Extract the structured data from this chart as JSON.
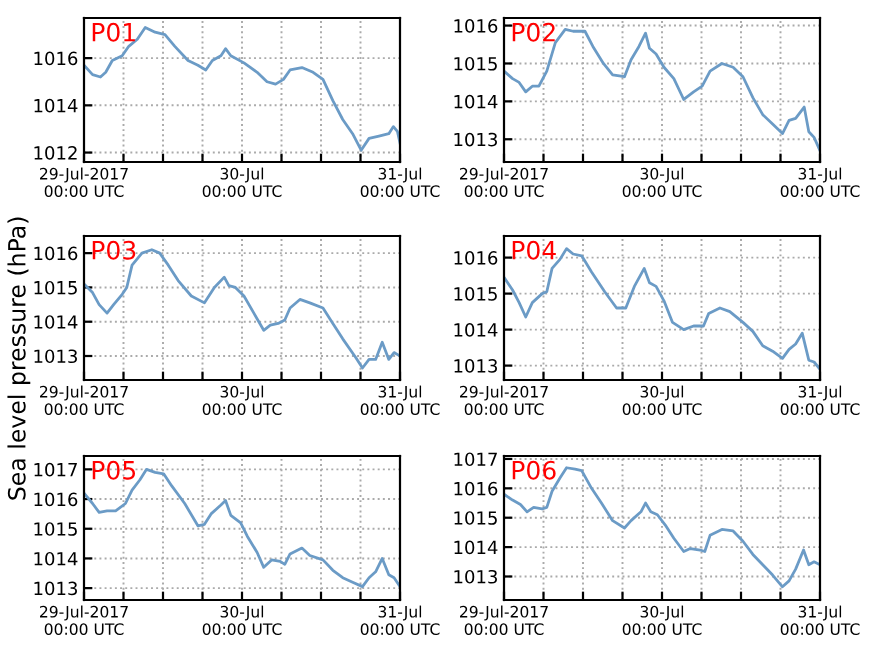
{
  "chart_data": [
    {
      "type": "line",
      "title": "P01",
      "xlim": [
        "2017-07-29T00:00",
        "2017-07-31T00:00"
      ],
      "ylim": [
        1011.6,
        1017.7
      ],
      "yticks": [
        1012,
        1014,
        1016
      ],
      "xticks": [
        {
          "value": "2017-07-29T00:00",
          "label": "29-Jul-2017\n00:00 UTC"
        },
        {
          "value": "2017-07-29T06:00",
          "label": null
        },
        {
          "value": "2017-07-29T12:00",
          "label": null
        },
        {
          "value": "2017-07-29T18:00",
          "label": null
        },
        {
          "value": "2017-07-30T00:00",
          "label": "30-Jul\n00:00 UTC"
        },
        {
          "value": "2017-07-30T06:00",
          "label": null
        },
        {
          "value": "2017-07-30T12:00",
          "label": null
        },
        {
          "value": "2017-07-30T18:00",
          "label": null
        },
        {
          "value": "2017-07-31T00:00",
          "label": "31-Jul\n00:00 UTC"
        }
      ],
      "grid": true,
      "series": [
        {
          "color": "#6b9bc6",
          "x": [
            "2017-07-29T00:00",
            "2017-07-29T01:18",
            "2017-07-29T02:30",
            "2017-07-29T03:18",
            "2017-07-29T04:18",
            "2017-07-29T05:48",
            "2017-07-29T06:48",
            "2017-07-29T08:06",
            "2017-07-29T09:18",
            "2017-07-29T10:48",
            "2017-07-29T12:18",
            "2017-07-29T13:48",
            "2017-07-29T15:48",
            "2017-07-29T17:18",
            "2017-07-29T18:30",
            "2017-07-29T19:30",
            "2017-07-29T20:48",
            "2017-07-29T21:30",
            "2017-07-29T22:18",
            "2017-07-30T00:18",
            "2017-07-30T02:18",
            "2017-07-30T03:48",
            "2017-07-30T05:06",
            "2017-07-30T06:18",
            "2017-07-30T07:18",
            "2017-07-30T09:06",
            "2017-07-30T10:48",
            "2017-07-30T12:18",
            "2017-07-30T13:48",
            "2017-07-30T15:18",
            "2017-07-30T16:48",
            "2017-07-30T18:06",
            "2017-07-30T19:18",
            "2017-07-30T20:48",
            "2017-07-30T22:18",
            "2017-07-30T23:00",
            "2017-07-30T23:36",
            "2017-07-31T00:00"
          ],
          "values": [
            1015.7,
            1015.3,
            1015.2,
            1015.4,
            1015.9,
            1016.1,
            1016.5,
            1016.8,
            1017.3,
            1017.1,
            1017.0,
            1016.5,
            1015.9,
            1015.7,
            1015.5,
            1015.9,
            1016.1,
            1016.4,
            1016.1,
            1015.8,
            1015.4,
            1015.0,
            1014.9,
            1015.1,
            1015.5,
            1015.6,
            1015.4,
            1015.1,
            1014.2,
            1013.4,
            1012.8,
            1012.1,
            1012.6,
            1012.7,
            1012.8,
            1013.1,
            1012.9,
            1012.4
          ]
        }
      ]
    },
    {
      "type": "line",
      "title": "P02",
      "xlim": [
        "2017-07-29T00:00",
        "2017-07-31T00:00"
      ],
      "ylim": [
        1012.4,
        1016.2
      ],
      "yticks": [
        1013,
        1014,
        1015,
        1016
      ],
      "xticks": [
        {
          "value": "2017-07-29T00:00",
          "label": "29-Jul-2017\n00:00 UTC"
        },
        {
          "value": "2017-07-29T06:00",
          "label": null
        },
        {
          "value": "2017-07-29T12:00",
          "label": null
        },
        {
          "value": "2017-07-29T18:00",
          "label": null
        },
        {
          "value": "2017-07-30T00:00",
          "label": "30-Jul\n00:00 UTC"
        },
        {
          "value": "2017-07-30T06:00",
          "label": null
        },
        {
          "value": "2017-07-30T12:00",
          "label": null
        },
        {
          "value": "2017-07-30T18:00",
          "label": null
        },
        {
          "value": "2017-07-31T00:00",
          "label": "31-Jul\n00:00 UTC"
        }
      ],
      "grid": true,
      "series": [
        {
          "color": "#6b9bc6",
          "x": [
            "2017-07-29T00:00",
            "2017-07-29T01:18",
            "2017-07-29T02:18",
            "2017-07-29T03:18",
            "2017-07-29T04:18",
            "2017-07-29T05:18",
            "2017-07-29T06:30",
            "2017-07-29T07:48",
            "2017-07-29T09:18",
            "2017-07-29T10:30",
            "2017-07-29T12:18",
            "2017-07-29T13:30",
            "2017-07-29T15:06",
            "2017-07-29T16:30",
            "2017-07-29T18:18",
            "2017-07-29T19:18",
            "2017-07-29T20:30",
            "2017-07-29T21:30",
            "2017-07-29T22:06",
            "2017-07-29T23:06",
            "2017-07-30T00:18",
            "2017-07-30T01:48",
            "2017-07-30T03:18",
            "2017-07-30T04:48",
            "2017-07-30T06:06",
            "2017-07-30T07:18",
            "2017-07-30T09:06",
            "2017-07-30T10:48",
            "2017-07-30T12:18",
            "2017-07-30T13:48",
            "2017-07-30T15:18",
            "2017-07-30T16:48",
            "2017-07-30T18:18",
            "2017-07-30T19:18",
            "2017-07-30T20:18",
            "2017-07-30T21:36",
            "2017-07-30T22:18",
            "2017-07-30T23:06",
            "2017-07-31T00:00"
          ],
          "values": [
            1014.8,
            1014.6,
            1014.5,
            1014.25,
            1014.4,
            1014.4,
            1014.8,
            1015.55,
            1015.9,
            1015.85,
            1015.85,
            1015.45,
            1015.0,
            1014.7,
            1014.65,
            1015.1,
            1015.45,
            1015.8,
            1015.4,
            1015.25,
            1014.9,
            1014.6,
            1014.05,
            1014.25,
            1014.4,
            1014.8,
            1015.0,
            1014.9,
            1014.65,
            1014.1,
            1013.65,
            1013.4,
            1013.15,
            1013.5,
            1013.55,
            1013.85,
            1013.2,
            1013.05,
            1012.7
          ]
        }
      ]
    },
    {
      "type": "line",
      "title": "P03",
      "ylabel": "Sea level pressure (hPa)",
      "xlim": [
        "2017-07-29T00:00",
        "2017-07-31T00:00"
      ],
      "ylim": [
        1012.3,
        1016.5
      ],
      "yticks": [
        1013,
        1014,
        1015,
        1016
      ],
      "xticks": [
        {
          "value": "2017-07-29T00:00",
          "label": "29-Jul-2017\n00:00 UTC"
        },
        {
          "value": "2017-07-29T06:00",
          "label": null
        },
        {
          "value": "2017-07-29T12:00",
          "label": null
        },
        {
          "value": "2017-07-29T18:00",
          "label": null
        },
        {
          "value": "2017-07-30T00:00",
          "label": "30-Jul\n00:00 UTC"
        },
        {
          "value": "2017-07-30T06:00",
          "label": null
        },
        {
          "value": "2017-07-30T12:00",
          "label": null
        },
        {
          "value": "2017-07-30T18:00",
          "label": null
        },
        {
          "value": "2017-07-31T00:00",
          "label": "31-Jul\n00:00 UTC"
        }
      ],
      "grid": true,
      "series": [
        {
          "color": "#6b9bc6",
          "x": [
            "2017-07-29T00:00",
            "2017-07-29T01:18",
            "2017-07-29T02:18",
            "2017-07-29T03:30",
            "2017-07-29T04:30",
            "2017-07-29T05:48",
            "2017-07-29T06:30",
            "2017-07-29T07:18",
            "2017-07-29T08:48",
            "2017-07-29T10:18",
            "2017-07-29T11:30",
            "2017-07-29T12:48",
            "2017-07-29T14:18",
            "2017-07-29T16:18",
            "2017-07-29T18:18",
            "2017-07-29T19:48",
            "2017-07-29T21:18",
            "2017-07-29T22:00",
            "2017-07-29T23:00",
            "2017-07-30T00:18",
            "2017-07-30T01:48",
            "2017-07-30T03:18",
            "2017-07-30T04:18",
            "2017-07-30T05:30",
            "2017-07-30T06:30",
            "2017-07-30T07:18",
            "2017-07-30T08:48",
            "2017-07-30T10:18",
            "2017-07-30T12:18",
            "2017-07-30T13:48",
            "2017-07-30T15:18",
            "2017-07-30T17:18",
            "2017-07-30T18:18",
            "2017-07-30T19:18",
            "2017-07-30T20:18",
            "2017-07-30T21:18",
            "2017-07-30T22:18",
            "2017-07-30T23:06",
            "2017-07-31T00:00"
          ],
          "values": [
            1015.1,
            1014.85,
            1014.5,
            1014.25,
            1014.5,
            1014.8,
            1015.0,
            1015.65,
            1016.0,
            1016.1,
            1016.0,
            1015.65,
            1015.2,
            1014.75,
            1014.55,
            1015.0,
            1015.3,
            1015.05,
            1015.0,
            1014.75,
            1014.25,
            1013.75,
            1013.9,
            1013.95,
            1014.05,
            1014.4,
            1014.65,
            1014.55,
            1014.4,
            1013.95,
            1013.5,
            1012.95,
            1012.65,
            1012.9,
            1012.9,
            1013.4,
            1012.9,
            1013.1,
            1013.0
          ]
        }
      ]
    },
    {
      "type": "line",
      "title": "P04",
      "xlim": [
        "2017-07-29T00:00",
        "2017-07-31T00:00"
      ],
      "ylim": [
        1012.6,
        1016.6
      ],
      "yticks": [
        1013,
        1014,
        1015,
        1016
      ],
      "xticks": [
        {
          "value": "2017-07-29T00:00",
          "label": "29-Jul-2017\n00:00 UTC"
        },
        {
          "value": "2017-07-29T06:00",
          "label": null
        },
        {
          "value": "2017-07-29T12:00",
          "label": null
        },
        {
          "value": "2017-07-29T18:00",
          "label": null
        },
        {
          "value": "2017-07-30T00:00",
          "label": "30-Jul\n00:00 UTC"
        },
        {
          "value": "2017-07-30T06:00",
          "label": null
        },
        {
          "value": "2017-07-30T12:00",
          "label": null
        },
        {
          "value": "2017-07-30T18:00",
          "label": null
        },
        {
          "value": "2017-07-31T00:00",
          "label": "31-Jul\n00:00 UTC"
        }
      ],
      "grid": true,
      "series": [
        {
          "color": "#6b9bc6",
          "x": [
            "2017-07-29T00:00",
            "2017-07-29T01:18",
            "2017-07-29T02:18",
            "2017-07-29T03:18",
            "2017-07-29T04:18",
            "2017-07-29T05:48",
            "2017-07-29T06:30",
            "2017-07-29T07:18",
            "2017-07-29T08:30",
            "2017-07-29T09:30",
            "2017-07-29T10:30",
            "2017-07-29T11:48",
            "2017-07-29T13:18",
            "2017-07-29T15:18",
            "2017-07-29T17:06",
            "2017-07-29T18:30",
            "2017-07-29T19:48",
            "2017-07-29T21:18",
            "2017-07-29T22:06",
            "2017-07-29T23:06",
            "2017-07-30T00:18",
            "2017-07-30T01:36",
            "2017-07-30T03:18",
            "2017-07-30T04:48",
            "2017-07-30T06:18",
            "2017-07-30T07:06",
            "2017-07-30T08:48",
            "2017-07-30T10:18",
            "2017-07-30T12:18",
            "2017-07-30T13:48",
            "2017-07-30T15:18",
            "2017-07-30T16:48",
            "2017-07-30T18:18",
            "2017-07-30T19:18",
            "2017-07-30T20:18",
            "2017-07-30T21:18",
            "2017-07-30T22:18",
            "2017-07-30T23:06",
            "2017-07-31T00:00"
          ],
          "values": [
            1015.45,
            1015.1,
            1014.75,
            1014.35,
            1014.75,
            1015.0,
            1015.05,
            1015.7,
            1015.95,
            1016.25,
            1016.1,
            1016.05,
            1015.6,
            1015.05,
            1014.6,
            1014.6,
            1015.2,
            1015.7,
            1015.3,
            1015.2,
            1014.8,
            1014.2,
            1014.0,
            1014.1,
            1014.1,
            1014.45,
            1014.6,
            1014.5,
            1014.2,
            1013.95,
            1013.55,
            1013.4,
            1013.2,
            1013.45,
            1013.6,
            1013.9,
            1013.15,
            1013.1,
            1012.9
          ]
        }
      ]
    },
    {
      "type": "line",
      "title": "P05",
      "xlim": [
        "2017-07-29T00:00",
        "2017-07-31T00:00"
      ],
      "ylim": [
        1012.6,
        1017.45
      ],
      "yticks": [
        1013,
        1014,
        1015,
        1016,
        1017
      ],
      "xticks": [
        {
          "value": "2017-07-29T00:00",
          "label": "29-Jul-2017\n00:00 UTC"
        },
        {
          "value": "2017-07-29T06:00",
          "label": null
        },
        {
          "value": "2017-07-29T12:00",
          "label": null
        },
        {
          "value": "2017-07-29T18:00",
          "label": null
        },
        {
          "value": "2017-07-30T00:00",
          "label": "30-Jul\n00:00 UTC"
        },
        {
          "value": "2017-07-30T06:00",
          "label": null
        },
        {
          "value": "2017-07-30T12:00",
          "label": null
        },
        {
          "value": "2017-07-30T18:00",
          "label": null
        },
        {
          "value": "2017-07-31T00:00",
          "label": "31-Jul\n00:00 UTC"
        }
      ],
      "grid": true,
      "series": [
        {
          "color": "#6b9bc6",
          "x": [
            "2017-07-29T00:00",
            "2017-07-29T01:18",
            "2017-07-29T02:18",
            "2017-07-29T03:30",
            "2017-07-29T04:48",
            "2017-07-29T06:18",
            "2017-07-29T07:18",
            "2017-07-29T08:30",
            "2017-07-29T09:30",
            "2017-07-29T10:48",
            "2017-07-29T12:06",
            "2017-07-29T13:18",
            "2017-07-29T15:18",
            "2017-07-29T17:18",
            "2017-07-29T18:18",
            "2017-07-29T19:18",
            "2017-07-29T20:48",
            "2017-07-29T21:30",
            "2017-07-29T22:18",
            "2017-07-29T23:48",
            "2017-07-30T00:48",
            "2017-07-30T02:18",
            "2017-07-30T03:18",
            "2017-07-30T04:30",
            "2017-07-30T05:48",
            "2017-07-30T06:30",
            "2017-07-30T07:18",
            "2017-07-30T09:06",
            "2017-07-30T10:18",
            "2017-07-30T12:18",
            "2017-07-30T13:48",
            "2017-07-30T15:18",
            "2017-07-30T16:48",
            "2017-07-30T18:18",
            "2017-07-30T19:18",
            "2017-07-30T20:18",
            "2017-07-30T21:18",
            "2017-07-30T22:18",
            "2017-07-30T23:06",
            "2017-07-31T00:00"
          ],
          "values": [
            1016.2,
            1015.85,
            1015.55,
            1015.6,
            1015.6,
            1015.85,
            1016.3,
            1016.65,
            1017.0,
            1016.9,
            1016.85,
            1016.45,
            1015.85,
            1015.1,
            1015.15,
            1015.5,
            1015.8,
            1015.95,
            1015.45,
            1015.2,
            1014.75,
            1014.2,
            1013.7,
            1013.95,
            1013.9,
            1013.8,
            1014.15,
            1014.35,
            1014.1,
            1013.95,
            1013.6,
            1013.35,
            1013.2,
            1013.05,
            1013.35,
            1013.55,
            1014.0,
            1013.45,
            1013.35,
            1013.05
          ]
        }
      ]
    },
    {
      "type": "line",
      "title": "P06",
      "xlim": [
        "2017-07-29T00:00",
        "2017-07-31T00:00"
      ],
      "ylim": [
        1012.2,
        1017.1
      ],
      "yticks": [
        1013,
        1014,
        1015,
        1016,
        1017
      ],
      "xticks": [
        {
          "value": "2017-07-29T00:00",
          "label": "29-Jul-2017\n00:00 UTC"
        },
        {
          "value": "2017-07-29T06:00",
          "label": null
        },
        {
          "value": "2017-07-29T12:00",
          "label": null
        },
        {
          "value": "2017-07-29T18:00",
          "label": null
        },
        {
          "value": "2017-07-30T00:00",
          "label": "30-Jul\n00:00 UTC"
        },
        {
          "value": "2017-07-30T06:00",
          "label": null
        },
        {
          "value": "2017-07-30T12:00",
          "label": null
        },
        {
          "value": "2017-07-30T18:00",
          "label": null
        },
        {
          "value": "2017-07-31T00:00",
          "label": "31-Jul\n00:00 UTC"
        }
      ],
      "grid": true,
      "series": [
        {
          "color": "#6b9bc6",
          "x": [
            "2017-07-29T00:00",
            "2017-07-29T01:18",
            "2017-07-29T02:30",
            "2017-07-29T03:30",
            "2017-07-29T04:30",
            "2017-07-29T05:48",
            "2017-07-29T06:30",
            "2017-07-29T07:18",
            "2017-07-29T08:30",
            "2017-07-29T09:30",
            "2017-07-29T10:48",
            "2017-07-29T11:48",
            "2017-07-29T13:18",
            "2017-07-29T14:48",
            "2017-07-29T16:30",
            "2017-07-29T18:18",
            "2017-07-29T19:18",
            "2017-07-29T20:48",
            "2017-07-29T21:30",
            "2017-07-29T22:18",
            "2017-07-29T23:18",
            "2017-07-30T00:30",
            "2017-07-30T01:48",
            "2017-07-30T03:18",
            "2017-07-30T04:18",
            "2017-07-30T05:48",
            "2017-07-30T06:30",
            "2017-07-30T07:18",
            "2017-07-30T09:06",
            "2017-07-30T10:48",
            "2017-07-30T12:18",
            "2017-07-30T13:48",
            "2017-07-30T15:18",
            "2017-07-30T16:48",
            "2017-07-30T18:18",
            "2017-07-30T19:18",
            "2017-07-30T20:18",
            "2017-07-30T21:30",
            "2017-07-30T22:18",
            "2017-07-30T23:06",
            "2017-07-31T00:00"
          ],
          "values": [
            1015.8,
            1015.6,
            1015.45,
            1015.2,
            1015.35,
            1015.3,
            1015.35,
            1015.9,
            1016.35,
            1016.7,
            1016.65,
            1016.6,
            1016.0,
            1015.5,
            1014.9,
            1014.65,
            1014.9,
            1015.2,
            1015.5,
            1015.2,
            1015.1,
            1014.75,
            1014.3,
            1013.85,
            1013.95,
            1013.9,
            1013.85,
            1014.4,
            1014.6,
            1014.55,
            1014.2,
            1013.75,
            1013.4,
            1013.05,
            1012.65,
            1012.85,
            1013.25,
            1013.9,
            1013.4,
            1013.5,
            1013.4
          ]
        }
      ]
    }
  ]
}
